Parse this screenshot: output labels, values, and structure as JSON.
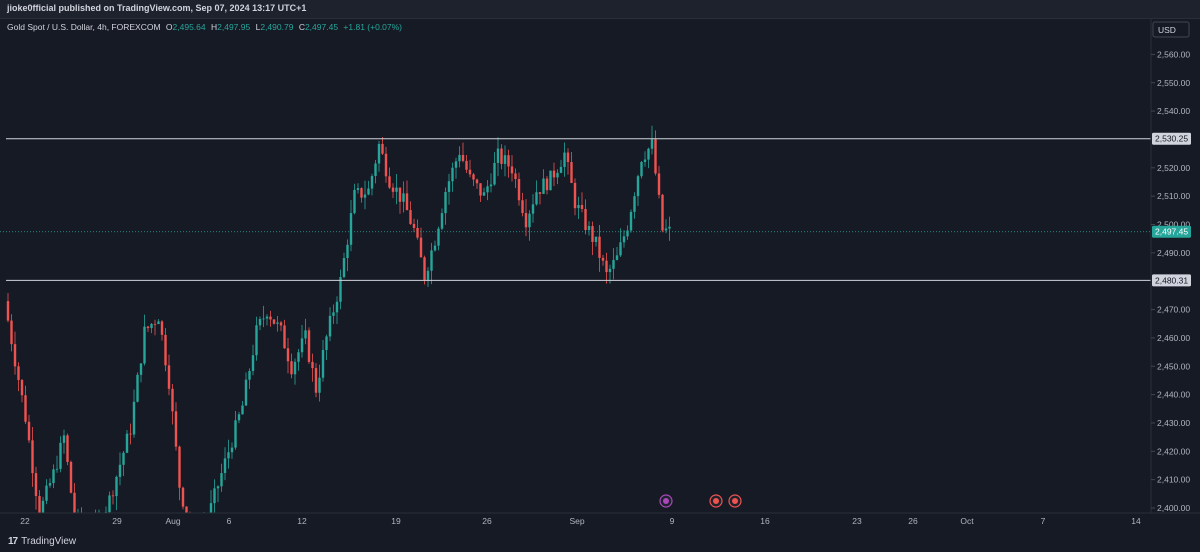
{
  "header": {
    "published": "jioke0fficial published on TradingView.com, Sep 07, 2024 13:17 UTC+1"
  },
  "legend": {
    "symbol": "Gold Spot / U.S. Dollar, 4h, FOREXCOM",
    "open_key": "O",
    "open": "2,495.64",
    "high_key": "H",
    "high": "2,497.95",
    "low_key": "L",
    "low": "2,490.79",
    "close_key": "C",
    "close": "2,497.45",
    "change": "+1.81 (+0.07%)"
  },
  "price_axis": {
    "currency": "USD",
    "ticks": [
      {
        "label": "2,560.00",
        "value": 2560
      },
      {
        "label": "2,550.00",
        "value": 2550
      },
      {
        "label": "2,540.00",
        "value": 2540
      },
      {
        "label": "2,520.00",
        "value": 2520
      },
      {
        "label": "2,510.00",
        "value": 2510
      },
      {
        "label": "2,500.00",
        "value": 2500
      },
      {
        "label": "2,490.00",
        "value": 2490
      },
      {
        "label": "2,470.00",
        "value": 2470
      },
      {
        "label": "2,460.00",
        "value": 2460
      },
      {
        "label": "2,450.00",
        "value": 2450
      },
      {
        "label": "2,440.00",
        "value": 2440
      },
      {
        "label": "2,430.00",
        "value": 2430
      },
      {
        "label": "2,420.00",
        "value": 2420
      },
      {
        "label": "2,410.00",
        "value": 2410
      },
      {
        "label": "2,400.00",
        "value": 2400
      }
    ],
    "badges": [
      {
        "label": "2,530.25",
        "value": 2530.25,
        "kind": "level"
      },
      {
        "label": "2,497.45",
        "value": 2497.45,
        "kind": "last"
      },
      {
        "label": "2,480.31",
        "value": 2480.31,
        "kind": "level"
      }
    ]
  },
  "time_axis": {
    "labels": [
      "22",
      "29",
      "Aug",
      "6",
      "12",
      "19",
      "26",
      "Sep",
      "9",
      "16",
      "23",
      "26",
      "Oct",
      "7",
      "14"
    ]
  },
  "footer": {
    "brand": "TradingView"
  },
  "colors": {
    "bg": "#161a25",
    "up": "#26a69a",
    "down": "#ef5350",
    "line": "#d1d4dc",
    "axis_text": "#b2b5be",
    "last_badge": "#26a69a"
  },
  "chart_data": {
    "type": "candlestick",
    "symbol": "Gold Spot / U.S. Dollar",
    "interval": "4h",
    "ylim": [
      2398,
      2566
    ],
    "horizontal_levels": [
      2530.25,
      2480.31
    ],
    "last_price": 2497.45,
    "waypoints": [
      [
        0,
        2473
      ],
      [
        6,
        2432
      ],
      [
        10,
        2398
      ],
      [
        14,
        2412
      ],
      [
        17,
        2425
      ],
      [
        20,
        2396
      ],
      [
        26,
        2392
      ],
      [
        30,
        2403
      ],
      [
        36,
        2428
      ],
      [
        40,
        2462
      ],
      [
        44,
        2468
      ],
      [
        47,
        2445
      ],
      [
        50,
        2408
      ],
      [
        54,
        2388
      ],
      [
        58,
        2396
      ],
      [
        64,
        2420
      ],
      [
        68,
        2436
      ],
      [
        72,
        2462
      ],
      [
        75,
        2470
      ],
      [
        79,
        2462
      ],
      [
        82,
        2450
      ],
      [
        86,
        2460
      ],
      [
        89,
        2442
      ],
      [
        92,
        2460
      ],
      [
        96,
        2480
      ],
      [
        100,
        2510
      ],
      [
        104,
        2512
      ],
      [
        107,
        2528
      ],
      [
        110,
        2516
      ],
      [
        114,
        2508
      ],
      [
        117,
        2498
      ],
      [
        120,
        2482
      ],
      [
        123,
        2495
      ],
      [
        126,
        2512
      ],
      [
        130,
        2526
      ],
      [
        133,
        2516
      ],
      [
        137,
        2510
      ],
      [
        141,
        2524
      ],
      [
        145,
        2520
      ],
      [
        149,
        2502
      ],
      [
        152,
        2512
      ],
      [
        156,
        2516
      ],
      [
        160,
        2525
      ],
      [
        163,
        2508
      ],
      [
        166,
        2500
      ],
      [
        169,
        2493
      ],
      [
        172,
        2482
      ],
      [
        175,
        2488
      ],
      [
        178,
        2500
      ],
      [
        182,
        2524
      ],
      [
        185,
        2528
      ],
      [
        188,
        2498
      ],
      [
        190,
        2497.5
      ]
    ],
    "time_labels": [
      "22",
      "29",
      "Aug",
      "6",
      "12",
      "19",
      "26",
      "Sep",
      "9",
      "16",
      "23",
      "26",
      "Oct",
      "7",
      "14"
    ]
  }
}
